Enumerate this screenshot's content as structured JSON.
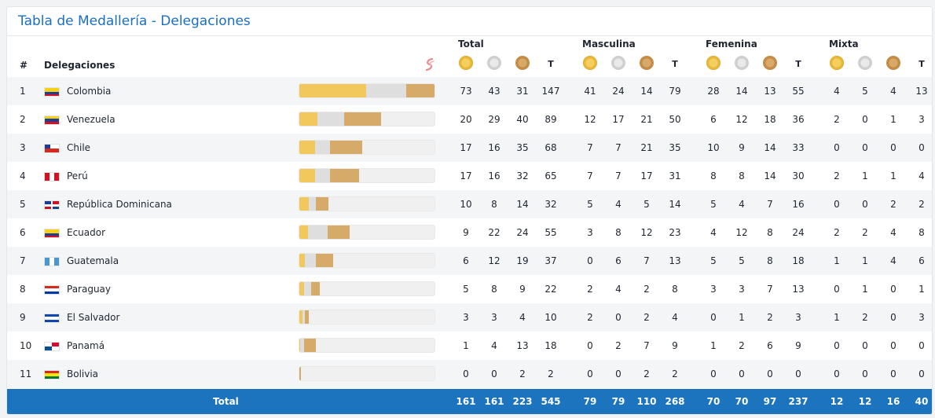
{
  "title": "Tabla de Medallería - Delegaciones",
  "header": {
    "rank": "#",
    "delegation": "Delegaciones",
    "groups": [
      "Total",
      "Masculina",
      "Femenina",
      "Mixta"
    ],
    "t_label": "T"
  },
  "colors": {
    "accent": "#1d74be",
    "gold": "#f2c75c",
    "silver": "#dedede",
    "bronze": "#d6ab6a"
  },
  "rows": [
    {
      "rank": "1",
      "name": "Colombia",
      "flag": "colombia",
      "total": [
        "73",
        "43",
        "31",
        "147"
      ],
      "masc": [
        "41",
        "24",
        "14",
        "79"
      ],
      "fem": [
        "28",
        "14",
        "13",
        "55"
      ],
      "mix": [
        "4",
        "5",
        "4",
        "13"
      ]
    },
    {
      "rank": "2",
      "name": "Venezuela",
      "flag": "venezuela",
      "total": [
        "20",
        "29",
        "40",
        "89"
      ],
      "masc": [
        "12",
        "17",
        "21",
        "50"
      ],
      "fem": [
        "6",
        "12",
        "18",
        "36"
      ],
      "mix": [
        "2",
        "0",
        "1",
        "3"
      ]
    },
    {
      "rank": "3",
      "name": "Chile",
      "flag": "chile",
      "total": [
        "17",
        "16",
        "35",
        "68"
      ],
      "masc": [
        "7",
        "7",
        "21",
        "35"
      ],
      "fem": [
        "10",
        "9",
        "14",
        "33"
      ],
      "mix": [
        "0",
        "0",
        "0",
        "0"
      ]
    },
    {
      "rank": "4",
      "name": "Perú",
      "flag": "peru",
      "total": [
        "17",
        "16",
        "32",
        "65"
      ],
      "masc": [
        "7",
        "7",
        "17",
        "31"
      ],
      "fem": [
        "8",
        "8",
        "14",
        "30"
      ],
      "mix": [
        "2",
        "1",
        "1",
        "4"
      ]
    },
    {
      "rank": "5",
      "name": "República Dominicana",
      "flag": "dominicana",
      "total": [
        "10",
        "8",
        "14",
        "32"
      ],
      "masc": [
        "5",
        "4",
        "5",
        "14"
      ],
      "fem": [
        "5",
        "4",
        "7",
        "16"
      ],
      "mix": [
        "0",
        "0",
        "2",
        "2"
      ]
    },
    {
      "rank": "6",
      "name": "Ecuador",
      "flag": "ecuador",
      "total": [
        "9",
        "22",
        "24",
        "55"
      ],
      "masc": [
        "3",
        "8",
        "12",
        "23"
      ],
      "fem": [
        "4",
        "12",
        "8",
        "24"
      ],
      "mix": [
        "2",
        "2",
        "4",
        "8"
      ]
    },
    {
      "rank": "7",
      "name": "Guatemala",
      "flag": "guatemala",
      "total": [
        "6",
        "12",
        "19",
        "37"
      ],
      "masc": [
        "0",
        "6",
        "7",
        "13"
      ],
      "fem": [
        "5",
        "5",
        "8",
        "18"
      ],
      "mix": [
        "1",
        "1",
        "4",
        "6"
      ]
    },
    {
      "rank": "8",
      "name": "Paraguay",
      "flag": "paraguay",
      "total": [
        "5",
        "8",
        "9",
        "22"
      ],
      "masc": [
        "2",
        "4",
        "2",
        "8"
      ],
      "fem": [
        "3",
        "3",
        "7",
        "13"
      ],
      "mix": [
        "0",
        "1",
        "0",
        "1"
      ]
    },
    {
      "rank": "9",
      "name": "El Salvador",
      "flag": "elsalvador",
      "total": [
        "3",
        "3",
        "4",
        "10"
      ],
      "masc": [
        "2",
        "0",
        "2",
        "4"
      ],
      "fem": [
        "0",
        "1",
        "2",
        "3"
      ],
      "mix": [
        "1",
        "2",
        "0",
        "3"
      ]
    },
    {
      "rank": "10",
      "name": "Panamá",
      "flag": "panama",
      "total": [
        "1",
        "4",
        "13",
        "18"
      ],
      "masc": [
        "0",
        "2",
        "7",
        "9"
      ],
      "fem": [
        "1",
        "2",
        "6",
        "9"
      ],
      "mix": [
        "0",
        "0",
        "0",
        "0"
      ]
    },
    {
      "rank": "11",
      "name": "Bolivia",
      "flag": "bolivia",
      "total": [
        "0",
        "0",
        "2",
        "2"
      ],
      "masc": [
        "0",
        "0",
        "2",
        "2"
      ],
      "fem": [
        "0",
        "0",
        "0",
        "0"
      ],
      "mix": [
        "0",
        "0",
        "0",
        "0"
      ]
    }
  ],
  "totals": {
    "label": "Total",
    "total": [
      "161",
      "161",
      "223",
      "545"
    ],
    "masc": [
      "79",
      "79",
      "110",
      "268"
    ],
    "fem": [
      "70",
      "70",
      "97",
      "237"
    ],
    "mix": [
      "12",
      "12",
      "16",
      "40"
    ]
  }
}
